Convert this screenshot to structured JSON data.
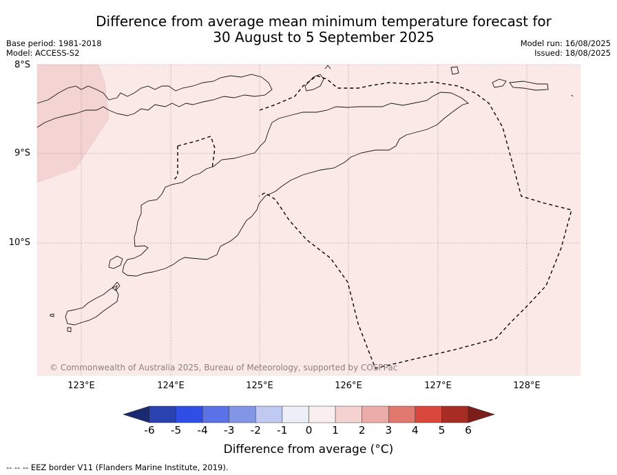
{
  "title_line1": "Difference from average mean minimum temperature forecast for",
  "title_line2": "30 August to 5 September 2025",
  "base_period": "Base period: 1981-2018",
  "model": "Model: ACCESS-S2",
  "model_run": "Model run: 16/08/2025",
  "issued": "Issued: 18/08/2025",
  "lat_labels": [
    "8°S",
    "9°S",
    "10°S"
  ],
  "lon_labels": [
    "123°E",
    "124°E",
    "125°E",
    "126°E",
    "127°E",
    "128°E"
  ],
  "copyright": "© Commonwealth of Australia 2025, Bureau of Meteorology, supported by COSPPac",
  "colorbar": {
    "label": "Difference from average (°C)",
    "ticks": [
      "-6",
      "-5",
      "-4",
      "-3",
      "-2",
      "-1",
      "0",
      "1",
      "2",
      "3",
      "4",
      "5",
      "6"
    ],
    "colors": [
      "#1b2a70",
      "#2a42b0",
      "#2f4ee6",
      "#5a72e6",
      "#8296e6",
      "#c0c9f2",
      "#eceef8",
      "#fbeeee",
      "#f5d2d2",
      "#ecacaa",
      "#e2796f",
      "#d8483c",
      "#a62c24",
      "#7c1d1a"
    ]
  },
  "map_fill_colors": {
    "main": "#fbe9e8",
    "warm_patch": "#f3d4d3"
  },
  "footer": "--  --  -- EEZ border V11 (Flanders Marine Institute, 2019)."
}
